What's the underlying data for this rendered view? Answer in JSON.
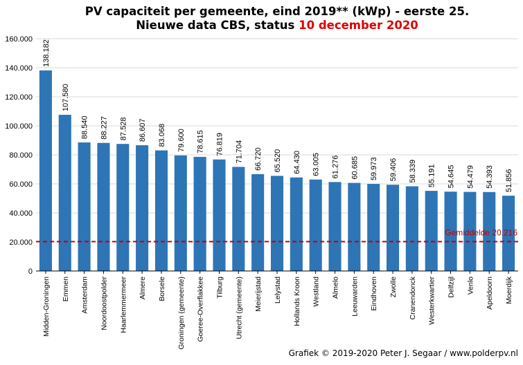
{
  "chart_data": {
    "type": "bar",
    "title_line1": "PV capaciteit  per gemeente, eind 2019** (kWp) - eerste 25.",
    "title_line2_prefix": "Nieuwe data CBS, status ",
    "title_line2_date": "10 december 2020",
    "categories": [
      "Midden-Groningen",
      "Emmen",
      "Amsterdam",
      "Noordoostpolder",
      "Haarlemmermeer",
      "Almere",
      "Borsele",
      "Groningen (gemeente)",
      "Goeree-Overflakkee",
      "Tilburg",
      "Utrecht (gemeente)",
      "Meierijstad",
      "Lelystad",
      "Hollands Kroon",
      "Westland",
      "Almelo",
      "Leeuwarden",
      "Eindhoven",
      "Zwolle",
      "Cranendonck",
      "Westerkwartier",
      "Delfzijl",
      "Venlo",
      "Apeldoorn",
      "Moerdijk"
    ],
    "values": [
      138182,
      107580,
      88540,
      88227,
      87528,
      86607,
      83068,
      79600,
      78615,
      76819,
      71704,
      66720,
      65520,
      64430,
      63005,
      61276,
      60685,
      59973,
      59406,
      58339,
      55191,
      54645,
      54479,
      54393,
      51856
    ],
    "value_labels": [
      "138.182",
      "107.580",
      "88.540",
      "88.227",
      "87.528",
      "86.607",
      "83.068",
      "79.600",
      "78.615",
      "76.819",
      "71.704",
      "66.720",
      "65.520",
      "64.430",
      "63.005",
      "61.276",
      "60.685",
      "59.973",
      "59.406",
      "58.339",
      "55.191",
      "54.645",
      "54.479",
      "54.393",
      "51.856"
    ],
    "y_ticks": [
      0,
      20000,
      40000,
      60000,
      80000,
      100000,
      120000,
      140000,
      160000
    ],
    "y_tick_labels": [
      "0",
      "20.000",
      "40.000",
      "60.000",
      "80.000",
      "100.000",
      "120.000",
      "140.000",
      "160.000"
    ],
    "ylim": [
      0,
      160000
    ],
    "grid": true,
    "average": {
      "value": 20216,
      "label": "Gemiddelde  20.216"
    },
    "colors": {
      "bar": "#2e75b6",
      "average": "#c00000",
      "grid": "#d9d9d9"
    },
    "credit": "Grafiek  © 2019-2020 Peter J. Segaar / www.polderpv.nl"
  }
}
